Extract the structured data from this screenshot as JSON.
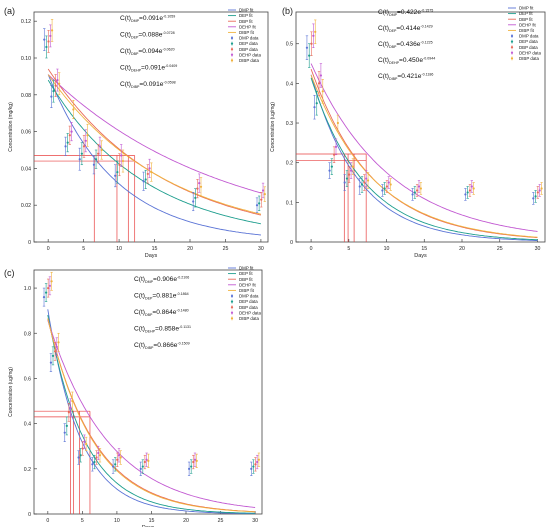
{
  "colors": {
    "DMP": "#5b74d6",
    "DEP": "#1e9e8e",
    "DBP": "#e96a5a",
    "DEHP": "#c25ad2",
    "DIBP": "#f0b23e",
    "ref": "#e84040"
  },
  "chart_data": [
    {
      "panel_label": "(a)",
      "type": "scatter",
      "xlabel": "Days",
      "ylabel": "Concentration (mg/kg)",
      "xlim": [
        -2,
        31
      ],
      "ylim": [
        0,
        0.125
      ],
      "xticks": [
        0,
        5,
        10,
        15,
        20,
        25,
        30
      ],
      "yticks": [
        0,
        0.02,
        0.04,
        0.06,
        0.08,
        0.1,
        0.12
      ],
      "ytick_labels": [
        "0",
        "0.02",
        "0.04",
        "0.06",
        "0.08",
        "0.10",
        "0.12"
      ],
      "legend": [
        "DMP fit",
        "DEP fit",
        "DBP fit",
        "DEHP fit",
        "DIBP fit",
        "DMP data",
        "DEP data",
        "DBP data",
        "DEHP data",
        "DIBP data"
      ],
      "equations": [
        {
          "pre": "C(t)",
          "sub": "DMP",
          "mid": "=0.091e",
          "sup": "-0.1059"
        },
        {
          "pre": "C(t)",
          "sub": "DEP",
          "mid": "=0.088e",
          "sup": "-0.0728"
        },
        {
          "pre": "C(t)",
          "sub": "DBP",
          "mid": "=0.094e",
          "sup": "-0.0620"
        },
        {
          "pre": "C(t)",
          "sub": "DEHP",
          "mid": "=0.091e",
          "sup": "-0.0409"
        },
        {
          "pre": "C(t)",
          "sub": "DIBP",
          "mid": "=0.091e",
          "sup": "-0.0598"
        }
      ],
      "series": [
        {
          "name": "DMP",
          "A": 0.091,
          "k": 0.1059
        },
        {
          "name": "DEP",
          "A": 0.088,
          "k": 0.0728
        },
        {
          "name": "DBP",
          "A": 0.094,
          "k": 0.062
        },
        {
          "name": "DEHP",
          "A": 0.091,
          "k": 0.0409
        },
        {
          "name": "DIBP",
          "A": 0.091,
          "k": 0.0598
        }
      ],
      "half_life_level": [
        0.044,
        0.047
      ],
      "half_life_days": [
        6.5,
        9.7,
        11.3,
        12.2
      ],
      "x": [
        0,
        1,
        3,
        5,
        7,
        10,
        14,
        21,
        30
      ],
      "points": {
        "DMP": [
          0.11,
          0.079,
          0.052,
          0.045,
          0.042,
          0.036,
          0.033,
          0.022,
          0.02
        ],
        "DEP": [
          0.106,
          0.082,
          0.054,
          0.048,
          0.045,
          0.038,
          0.034,
          0.024,
          0.021
        ],
        "DBP": [
          0.109,
          0.085,
          0.058,
          0.052,
          0.048,
          0.042,
          0.037,
          0.029,
          0.023
        ],
        "DEHP": [
          0.112,
          0.088,
          0.06,
          0.055,
          0.052,
          0.047,
          0.04,
          0.032,
          0.028
        ],
        "DIBP": [
          0.115,
          0.086,
          0.072,
          0.058,
          0.05,
          0.044,
          0.038,
          0.03,
          0.026
        ]
      },
      "errors": [
        0.006,
        0.006,
        0.005,
        0.006,
        0.005,
        0.006,
        0.005,
        0.005,
        0.004
      ]
    },
    {
      "panel_label": "(b)",
      "type": "scatter",
      "xlabel": "Days",
      "ylabel": "Concentration (ug/mg)",
      "xlim": [
        -2,
        31
      ],
      "ylim": [
        0,
        0.58
      ],
      "xticks": [
        0,
        5,
        10,
        15,
        20,
        25,
        30
      ],
      "yticks": [
        0,
        0.1,
        0.2,
        0.3,
        0.4,
        0.5
      ],
      "ytick_labels": [
        "0",
        "0.1",
        "0.2",
        "0.3",
        "0.4",
        "0.5"
      ],
      "legend": [
        "DMP fit",
        "DEP fit",
        "DBP fit",
        "DEHP fit",
        "DIBP fit",
        "DMP data",
        "DEP data",
        "DBP data",
        "DEHP data",
        "DIBP data"
      ],
      "equations": [
        {
          "pre": "C(t)",
          "sub": "DMP",
          "mid": "=0.422e",
          "sup": "-0.1575"
        },
        {
          "pre": "C(t)",
          "sub": "DEP",
          "mid": "=0.414e",
          "sup": "-0.1429"
        },
        {
          "pre": "C(t)",
          "sub": "DBP",
          "mid": "=0.436e",
          "sup": "-0.1225"
        },
        {
          "pre": "C(t)",
          "sub": "DEHP",
          "mid": "=0.450e",
          "sup": "-0.0944"
        },
        {
          "pre": "C(t)",
          "sub": "DIBP",
          "mid": "=0.421e",
          "sup": "-0.1186"
        }
      ],
      "series": [
        {
          "name": "DMP",
          "A": 0.422,
          "k": 0.1575
        },
        {
          "name": "DEP",
          "A": 0.414,
          "k": 0.1429
        },
        {
          "name": "DBP",
          "A": 0.436,
          "k": 0.1225
        },
        {
          "name": "DEHP",
          "A": 0.45,
          "k": 0.0944
        },
        {
          "name": "DIBP",
          "A": 0.421,
          "k": 0.1186
        }
      ],
      "half_life_level": [
        0.205,
        0.222
      ],
      "half_life_days": [
        4.4,
        4.9,
        5.7,
        7.3
      ],
      "x": [
        0,
        1,
        3,
        5,
        7,
        10,
        14,
        21,
        30
      ],
      "points": {
        "DMP": [
          0.49,
          0.34,
          0.18,
          0.15,
          0.14,
          0.13,
          0.12,
          0.12,
          0.11
        ],
        "DEP": [
          0.47,
          0.35,
          0.19,
          0.16,
          0.145,
          0.135,
          0.125,
          0.125,
          0.115
        ],
        "DBP": [
          0.5,
          0.4,
          0.22,
          0.17,
          0.15,
          0.14,
          0.13,
          0.13,
          0.125
        ],
        "DEHP": [
          0.52,
          0.42,
          0.24,
          0.18,
          0.16,
          0.15,
          0.14,
          0.14,
          0.13
        ],
        "DIBP": [
          0.53,
          0.38,
          0.3,
          0.19,
          0.155,
          0.145,
          0.135,
          0.135,
          0.135
        ]
      },
      "errors": [
        0.03,
        0.03,
        0.02,
        0.02,
        0.02,
        0.015,
        0.015,
        0.015,
        0.015
      ]
    },
    {
      "panel_label": "(c)",
      "type": "scatter",
      "xlabel": "Days",
      "ylabel": "Concentration (ug/mg)",
      "xlim": [
        -2,
        31
      ],
      "ylim": [
        0,
        1.08
      ],
      "xticks": [
        0,
        5,
        10,
        15,
        20,
        25,
        30
      ],
      "yticks": [
        0,
        0.2,
        0.4,
        0.6,
        0.8,
        1.0
      ],
      "ytick_labels": [
        "0",
        "0.2",
        "0.4",
        "0.6",
        "0.8",
        "1.0"
      ],
      "legend": [
        "DMP fit",
        "DEP fit",
        "DBP fit",
        "DEHP fit",
        "DIBP fit",
        "DMP data",
        "DEP data",
        "DBP data",
        "DEHP data",
        "DIBP data"
      ],
      "equations": [
        {
          "pre": "C(t)",
          "sub": "DMP",
          "mid": "=0.906e",
          "sup": "-0.2106"
        },
        {
          "pre": "C(t)",
          "sub": "DEP",
          "mid": "=0.881e",
          "sup": "-0.1864"
        },
        {
          "pre": "C(t)",
          "sub": "DBP",
          "mid": "=0.864e",
          "sup": "-0.1480"
        },
        {
          "pre": "C(t)",
          "sub": "DEHP",
          "mid": "=0.858e",
          "sup": "-0.1131"
        },
        {
          "pre": "C(t)",
          "sub": "DIBP",
          "mid": "=0.866e",
          "sup": "-0.1509"
        }
      ],
      "series": [
        {
          "name": "DMP",
          "A": 0.906,
          "k": 0.2106
        },
        {
          "name": "DEP",
          "A": 0.881,
          "k": 0.1864
        },
        {
          "name": "DBP",
          "A": 0.864,
          "k": 0.148
        },
        {
          "name": "DEHP",
          "A": 0.858,
          "k": 0.1131
        },
        {
          "name": "DIBP",
          "A": 0.866,
          "k": 0.1509
        }
      ],
      "half_life_level": [
        0.43,
        0.455
      ],
      "half_life_days": [
        3.3,
        3.7,
        4.6,
        6.1
      ],
      "x": [
        0,
        1,
        3,
        5,
        7,
        10,
        14,
        21,
        30
      ],
      "points": {
        "DMP": [
          0.96,
          0.67,
          0.36,
          0.25,
          0.22,
          0.21,
          0.2,
          0.2,
          0.2
        ],
        "DEP": [
          0.98,
          0.7,
          0.39,
          0.26,
          0.23,
          0.22,
          0.21,
          0.21,
          0.21
        ],
        "DBP": [
          1.0,
          0.72,
          0.45,
          0.29,
          0.25,
          0.24,
          0.23,
          0.23,
          0.22
        ],
        "DEHP": [
          1.01,
          0.74,
          0.47,
          0.32,
          0.27,
          0.26,
          0.24,
          0.24,
          0.23
        ],
        "DIBP": [
          1.03,
          0.76,
          0.5,
          0.31,
          0.26,
          0.25,
          0.235,
          0.235,
          0.24
        ]
      },
      "errors": [
        0.04,
        0.04,
        0.04,
        0.03,
        0.03,
        0.03,
        0.03,
        0.03,
        0.03
      ]
    }
  ]
}
